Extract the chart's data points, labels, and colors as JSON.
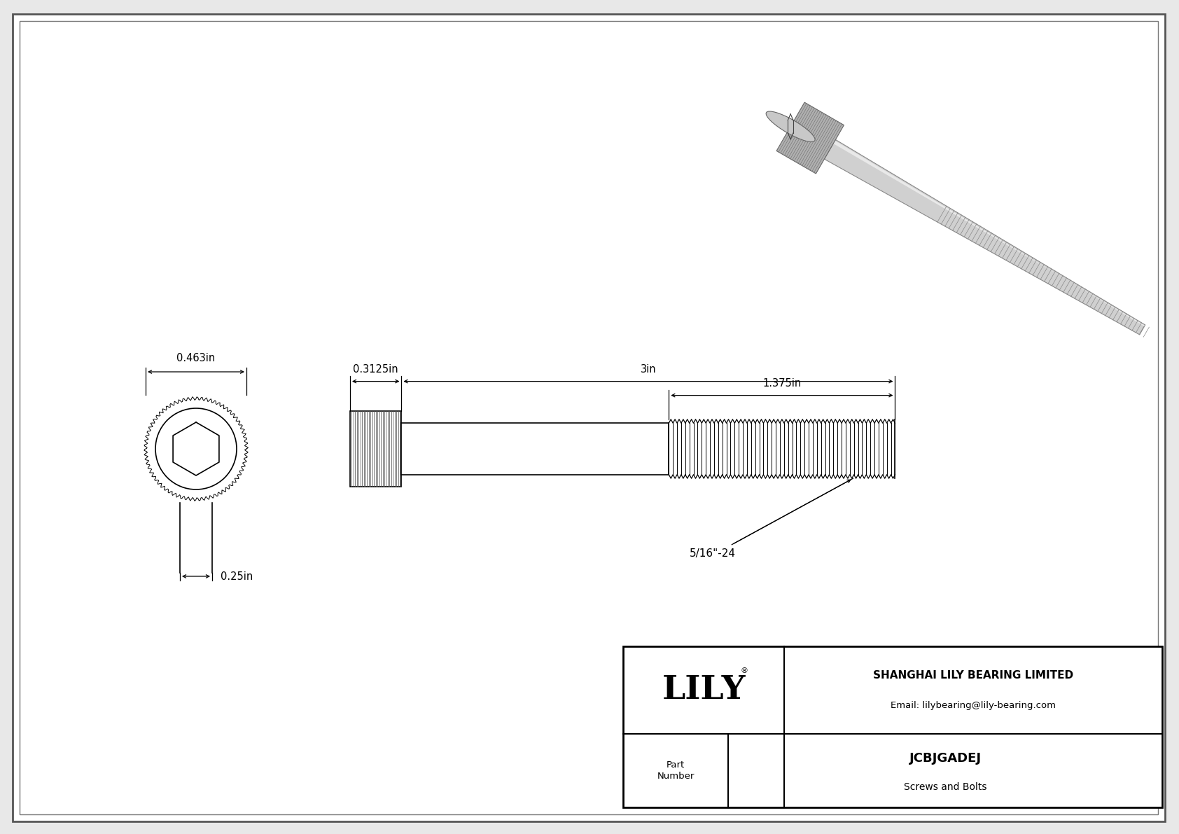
{
  "bg_color": "#e8e8e8",
  "drawing_bg": "#ffffff",
  "border_color": "#000000",
  "line_color": "#000000",
  "title": "JCBJGADEJ",
  "subtitle": "Screws and Bolts",
  "company": "SHANGHAI LILY BEARING LIMITED",
  "email": "Email: lilybearing@lily-bearing.com",
  "part_label": "Part\nNumber",
  "lily_text": "LILY",
  "dim_head_width": "0.463in",
  "dim_head_height": "0.25in",
  "dim_shank_width": "0.3125in",
  "dim_total_length": "3in",
  "dim_thread_length": "1.375in",
  "thread_label": "5/16\"-24",
  "font_size_dim": 10.5,
  "font_size_title": 13,
  "font_size_company": 10,
  "font_size_lily": 34,
  "font_size_part": 9.5
}
